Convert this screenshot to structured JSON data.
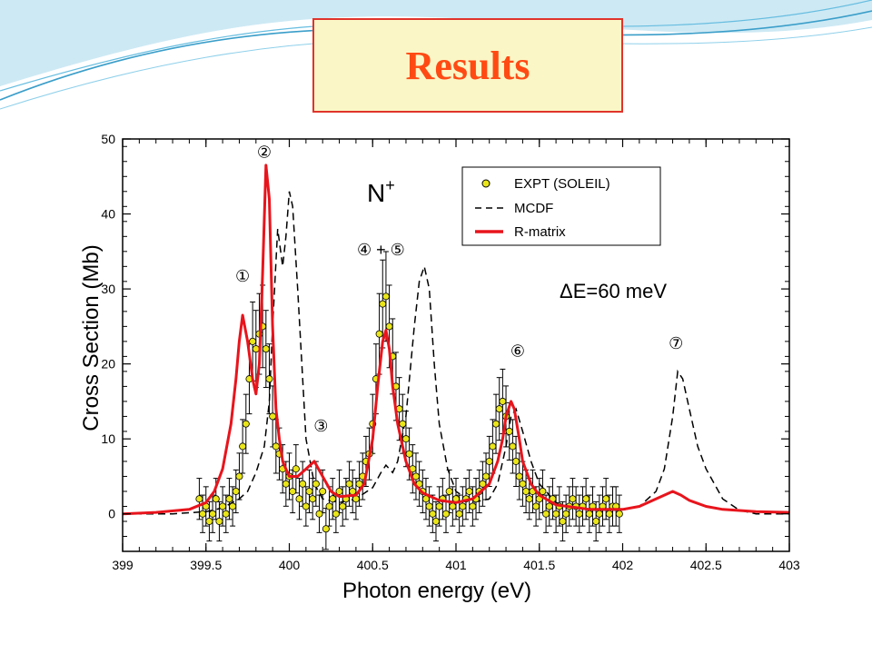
{
  "slide": {
    "title": "Results"
  },
  "colors": {
    "rmatrix": "#e8141c",
    "mcdf": "#000000",
    "expt_fill": "#e9e51a",
    "title_text": "#ff4a14",
    "title_border": "#e0342b",
    "title_bg": "#fbf6c6"
  },
  "chart_data": {
    "type": "line",
    "xlabel": "Photon energy (eV)",
    "ylabel": "Cross Section (Mb)",
    "xlim": [
      399,
      403
    ],
    "ylim": [
      -5,
      50
    ],
    "xticks": [
      "399",
      "399.5",
      "400",
      "400.5",
      "401",
      "401.5",
      "402",
      "402.5",
      "403"
    ],
    "yticks": [
      "0",
      "10",
      "20",
      "30",
      "40",
      "50"
    ],
    "ion_label": "N",
    "ion_charge": "+",
    "resolution_label": "ΔE=60 meV",
    "legend_position": "top-right",
    "peak_labels": [
      {
        "label": "①",
        "x": 399.72,
        "y": 31
      },
      {
        "label": "②",
        "x": 399.85,
        "y": 47.5
      },
      {
        "label": "③",
        "x": 400.19,
        "y": 11
      },
      {
        "label": "④ + ⑤",
        "x": 400.55,
        "y": 34.5
      },
      {
        "label": "⑥",
        "x": 401.37,
        "y": 21
      },
      {
        "label": "⑦",
        "x": 402.32,
        "y": 22
      }
    ],
    "series": [
      {
        "name": "EXPT (SOLEIL)",
        "style": "markers",
        "x": [
          399.46,
          399.48,
          399.5,
          399.52,
          399.54,
          399.56,
          399.58,
          399.6,
          399.62,
          399.64,
          399.66,
          399.68,
          399.7,
          399.72,
          399.74,
          399.76,
          399.78,
          399.8,
          399.82,
          399.84,
          399.86,
          399.88,
          399.9,
          399.92,
          399.94,
          399.96,
          399.98,
          400.0,
          400.02,
          400.04,
          400.06,
          400.08,
          400.1,
          400.12,
          400.14,
          400.16,
          400.18,
          400.2,
          400.22,
          400.24,
          400.26,
          400.28,
          400.3,
          400.32,
          400.34,
          400.36,
          400.38,
          400.4,
          400.42,
          400.44,
          400.46,
          400.48,
          400.5,
          400.52,
          400.54,
          400.56,
          400.58,
          400.6,
          400.62,
          400.64,
          400.66,
          400.68,
          400.7,
          400.72,
          400.74,
          400.76,
          400.78,
          400.8,
          400.82,
          400.84,
          400.86,
          400.88,
          400.9,
          400.92,
          400.94,
          400.96,
          400.98,
          401.0,
          401.02,
          401.04,
          401.06,
          401.08,
          401.1,
          401.12,
          401.14,
          401.16,
          401.18,
          401.2,
          401.22,
          401.24,
          401.26,
          401.28,
          401.3,
          401.32,
          401.34,
          401.36,
          401.38,
          401.4,
          401.42,
          401.44,
          401.46,
          401.48,
          401.5,
          401.52,
          401.54,
          401.56,
          401.58,
          401.6,
          401.62,
          401.64,
          401.66,
          401.68,
          401.7,
          401.72,
          401.74,
          401.76,
          401.78,
          401.8,
          401.82,
          401.84,
          401.86,
          401.88,
          401.9,
          401.92,
          401.94,
          401.96,
          401.98
        ],
        "y": [
          2,
          0,
          1,
          -1,
          0,
          2,
          -1,
          1,
          0,
          2,
          1,
          3,
          5,
          9,
          12,
          18,
          23,
          22,
          24,
          25,
          22,
          18,
          13,
          9,
          8,
          6,
          4,
          5,
          3,
          6,
          2,
          4,
          1,
          3,
          2,
          4,
          0,
          3,
          -2,
          1,
          2,
          0,
          3,
          1,
          2,
          4,
          3,
          2,
          4,
          5,
          7,
          8,
          12,
          18,
          24,
          28,
          29,
          25,
          21,
          17,
          14,
          12,
          10,
          8,
          6,
          5,
          4,
          3,
          2,
          1,
          0,
          -1,
          1,
          2,
          0,
          3,
          1,
          2,
          0,
          1,
          2,
          3,
          1,
          2,
          3,
          4,
          5,
          7,
          9,
          12,
          14,
          15,
          13,
          11,
          9,
          7,
          5,
          4,
          3,
          2,
          3,
          1,
          2,
          3,
          0,
          1,
          2,
          0,
          1,
          -1,
          0,
          1,
          2,
          1,
          0,
          1,
          2,
          0,
          1,
          -1,
          0,
          1,
          2,
          0,
          1,
          1,
          0
        ]
      },
      {
        "name": "MCDF",
        "style": "dashed",
        "x": [
          399.0,
          399.3,
          399.5,
          399.6,
          399.7,
          399.75,
          399.8,
          399.85,
          399.88,
          399.9,
          399.93,
          399.96,
          399.98,
          400.0,
          400.02,
          400.05,
          400.1,
          400.15,
          400.2,
          400.3,
          400.4,
          400.5,
          400.55,
          400.58,
          400.62,
          400.65,
          400.7,
          400.75,
          400.78,
          400.81,
          400.84,
          400.87,
          400.9,
          400.95,
          401.0,
          401.1,
          401.2,
          401.25,
          401.3,
          401.33,
          401.36,
          401.4,
          401.45,
          401.5,
          401.6,
          401.8,
          402.0,
          402.1,
          402.2,
          402.25,
          402.3,
          402.33,
          402.36,
          402.4,
          402.45,
          402.5,
          402.6,
          402.7,
          402.8,
          403.0
        ],
        "y": [
          0,
          0,
          0.3,
          0.8,
          2,
          3,
          5.5,
          9,
          15,
          25,
          38,
          33,
          37,
          43,
          41,
          30,
          10,
          4,
          2,
          1.5,
          2,
          3.5,
          5.5,
          6.5,
          5.5,
          7,
          13,
          25,
          31,
          33,
          30,
          20,
          12,
          6,
          3,
          1.5,
          2,
          4,
          9,
          13,
          14,
          11,
          7,
          4,
          1.5,
          0.5,
          0.5,
          1,
          3,
          6,
          13,
          19,
          18,
          14,
          9,
          6,
          2,
          0.5,
          0,
          0
        ]
      },
      {
        "name": "R-matrix",
        "style": "solid",
        "x": [
          399.0,
          399.2,
          399.4,
          399.5,
          399.55,
          399.6,
          399.65,
          399.68,
          399.7,
          399.72,
          399.75,
          399.78,
          399.8,
          399.82,
          399.84,
          399.86,
          399.88,
          399.9,
          399.92,
          399.94,
          399.96,
          399.98,
          400.0,
          400.05,
          400.1,
          400.15,
          400.2,
          400.25,
          400.3,
          400.4,
          400.45,
          400.5,
          400.53,
          400.56,
          400.58,
          400.6,
          400.62,
          400.65,
          400.7,
          400.75,
          400.8,
          400.9,
          401.0,
          401.1,
          401.2,
          401.25,
          401.28,
          401.3,
          401.33,
          401.35,
          401.38,
          401.4,
          401.45,
          401.5,
          401.6,
          401.8,
          402.0,
          402.1,
          402.2,
          402.25,
          402.3,
          402.35,
          402.4,
          402.5,
          402.6,
          402.8,
          403.0
        ],
        "y": [
          0,
          0.2,
          0.6,
          1.5,
          3,
          6,
          12,
          18,
          23,
          26.5,
          23,
          18,
          16,
          20,
          32,
          46.5,
          42,
          25,
          14,
          10,
          7,
          6,
          5,
          5,
          6,
          7,
          5,
          3,
          2.3,
          2.5,
          4,
          10,
          17,
          23,
          24.5,
          22,
          17,
          12,
          7,
          4,
          2.8,
          1.8,
          1.5,
          2,
          4,
          7,
          10,
          13,
          15,
          14,
          10,
          7,
          4,
          2.5,
          1.2,
          0.6,
          0.6,
          1,
          2,
          2.5,
          3,
          2.5,
          1.8,
          1,
          0.6,
          0.3,
          0.2
        ]
      }
    ]
  }
}
